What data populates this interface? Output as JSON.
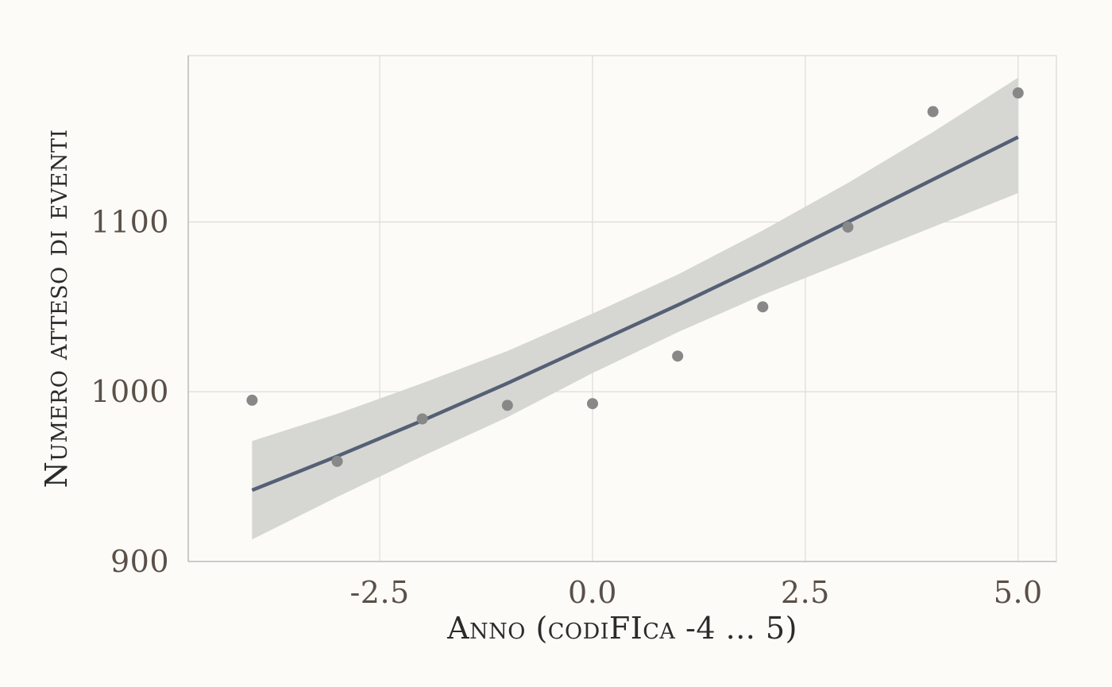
{
  "chart_data": {
    "type": "scatter",
    "title": "",
    "xlabel": "Anno (codiFIca -4 ... 5)",
    "ylabel": "Numero atteso di eventi",
    "xlim": [
      -4.75,
      5.45
    ],
    "ylim": [
      900,
      1198
    ],
    "x_ticks": [
      -2.5,
      0.0,
      2.5,
      5.0
    ],
    "x_tick_labels": [
      "-2.5",
      "0.0",
      "2.5",
      "5.0"
    ],
    "y_ticks": [
      900,
      1000,
      1100
    ],
    "y_tick_labels": [
      "900",
      "1000",
      "1100"
    ],
    "grid": true,
    "points": {
      "x": [
        -4,
        -3,
        -2,
        -1,
        0,
        1,
        2,
        3,
        4,
        5
      ],
      "y": [
        995,
        959,
        984,
        992,
        993,
        1021,
        1050,
        1097,
        1165,
        1176
      ]
    },
    "fit_line": {
      "x": [
        -4,
        -3,
        -2,
        -1,
        0,
        1,
        2,
        3,
        4,
        5
      ],
      "y": [
        942,
        962,
        983,
        1005,
        1028,
        1051,
        1075,
        1100,
        1125,
        1150
      ]
    },
    "confidence_band": {
      "x": [
        -4,
        -3,
        -2,
        -1,
        0,
        1,
        2,
        3,
        4,
        5
      ],
      "lower": [
        913,
        938,
        962,
        985,
        1011,
        1035,
        1057,
        1077,
        1097,
        1117
      ],
      "upper": [
        971,
        987,
        1005,
        1024,
        1046,
        1069,
        1095,
        1123,
        1153,
        1185
      ]
    },
    "colors": {
      "background": "#fcfbf8",
      "panel": "#fcfbf8",
      "grid": "#dcdcd8",
      "band": "#d4d5d1",
      "line": "#556075",
      "points": "#888888",
      "axis": "#bfbfbf"
    }
  }
}
